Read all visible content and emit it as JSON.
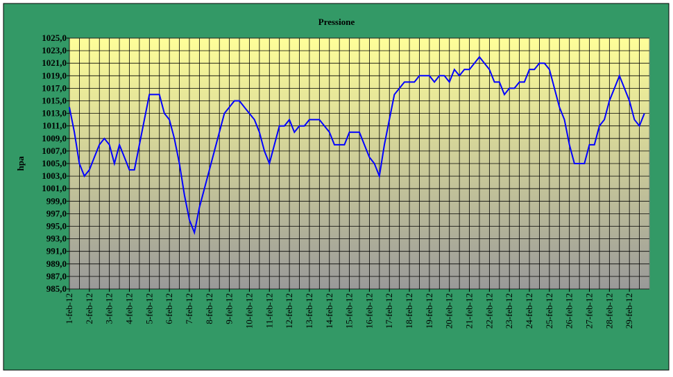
{
  "chart_data": {
    "type": "line",
    "title": "Pressione",
    "y_label": "hpa",
    "color": "#0000ff",
    "grid": true,
    "categories": [
      "1-feb-12",
      null,
      null,
      null,
      "2-feb-12",
      null,
      null,
      null,
      "3-feb-12",
      null,
      null,
      null,
      "4-feb-12",
      null,
      null,
      null,
      "5-feb-12",
      null,
      null,
      null,
      "6-feb-12",
      null,
      null,
      null,
      "7-feb-12",
      null,
      null,
      null,
      "8-feb-12",
      null,
      null,
      null,
      "9-feb-12",
      null,
      null,
      null,
      "10-feb-12",
      null,
      null,
      null,
      "11-feb-12",
      null,
      null,
      null,
      "12-feb-12",
      null,
      null,
      null,
      "13-feb-12",
      null,
      null,
      null,
      "14-feb-12",
      null,
      null,
      null,
      "15-feb-12",
      null,
      null,
      null,
      "16-feb-12",
      null,
      null,
      null,
      "17-feb-12",
      null,
      null,
      null,
      "18-feb-12",
      null,
      null,
      null,
      "19-feb-12",
      null,
      null,
      null,
      "20-feb-12",
      null,
      null,
      null,
      "21-feb-12",
      null,
      null,
      null,
      "22-feb-12",
      null,
      null,
      null,
      "23-feb-12",
      null,
      null,
      null,
      "24-feb-12",
      null,
      null,
      null,
      "25-feb-12",
      null,
      null,
      null,
      "26-feb-12",
      null,
      null,
      null,
      "27-feb-12",
      null,
      null,
      null,
      "28-feb-12",
      null,
      null,
      null,
      "29-feb-12",
      null,
      null,
      null
    ],
    "values": [
      1014,
      1010,
      1005,
      1003,
      1004,
      1006,
      1008,
      1009,
      1008,
      1005,
      1008,
      1006,
      1004,
      1004,
      1008,
      1012,
      1016,
      1016,
      1016,
      1013,
      1012,
      1009,
      1005,
      1000,
      996,
      994,
      998,
      1001,
      1004,
      1007,
      1010,
      1013,
      1014,
      1015,
      1015,
      1014,
      1013,
      1012,
      1010,
      1007,
      1005,
      1008,
      1011,
      1011,
      1012,
      1010,
      1011,
      1011,
      1012,
      1012,
      1012,
      1011,
      1010,
      1008,
      1008,
      1008,
      1010,
      1010,
      1010,
      1008,
      1006,
      1005,
      1003,
      1008,
      1012,
      1016,
      1017,
      1018,
      1018,
      1018,
      1019,
      1019,
      1019,
      1018,
      1019,
      1019,
      1018,
      1020,
      1019,
      1020,
      1020,
      1021,
      1022,
      1021,
      1020,
      1018,
      1018,
      1016,
      1017,
      1017,
      1018,
      1018,
      1020,
      1020,
      1021,
      1021,
      1020,
      1017,
      1014,
      1012,
      1008,
      1005,
      1005,
      1005,
      1008,
      1008,
      1011,
      1012,
      1015,
      1017,
      1019,
      1017,
      1015,
      1012,
      1011,
      1013
    ],
    "ylim": [
      985,
      1025
    ],
    "yticks": [
      {
        "value": 985,
        "label": "985,0"
      },
      {
        "value": 987,
        "label": "987,0"
      },
      {
        "value": 989,
        "label": "989,0"
      },
      {
        "value": 991,
        "label": "991,0"
      },
      {
        "value": 993,
        "label": "993,0"
      },
      {
        "value": 995,
        "label": "995,0"
      },
      {
        "value": 997,
        "label": "997,0"
      },
      {
        "value": 999,
        "label": "999,0"
      },
      {
        "value": 1001,
        "label": "1001,0"
      },
      {
        "value": 1003,
        "label": "1003,0"
      },
      {
        "value": 1005,
        "label": "1005,0"
      },
      {
        "value": 1007,
        "label": "1007,0"
      },
      {
        "value": 1009,
        "label": "1009,0"
      },
      {
        "value": 1011,
        "label": "1011,0"
      },
      {
        "value": 1013,
        "label": "1013,0"
      },
      {
        "value": 1015,
        "label": "1015,0"
      },
      {
        "value": 1017,
        "label": "1017,0"
      },
      {
        "value": 1019,
        "label": "1019,0"
      },
      {
        "value": 1021,
        "label": "1021,0"
      },
      {
        "value": 1023,
        "label": "1023,0"
      },
      {
        "value": 1025,
        "label": "1025,0"
      }
    ]
  }
}
